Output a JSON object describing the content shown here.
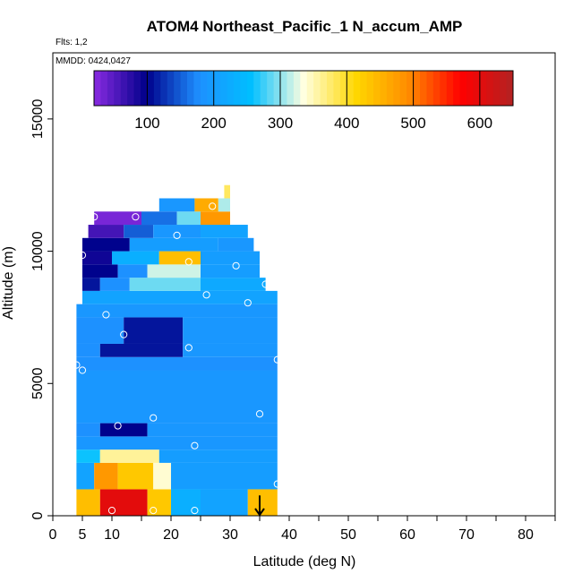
{
  "chart_data": {
    "type": "heatmap",
    "title": "ATOM4 Northeast_Pacific_1 N_accum_AMP",
    "annotations": [
      "Flts: 1,2",
      "MMDD: 0424,0427"
    ],
    "xlabel": "Latitude (deg N)",
    "ylabel": "Altitude (m)",
    "xlim": [
      0,
      85
    ],
    "ylim": [
      0,
      17500
    ],
    "x_ticks": [
      0,
      5,
      10,
      20,
      30,
      40,
      50,
      60,
      70,
      80
    ],
    "y_ticks": [
      0,
      5000,
      10000,
      15000
    ],
    "colorbar": {
      "range": [
        20,
        650
      ],
      "ticks": [
        100,
        200,
        300,
        400,
        500,
        600
      ],
      "colors": [
        "#8a2be2",
        "#00008b",
        "#1e90ff",
        "#00bfff",
        "#ffffe0",
        "#ffd700",
        "#ff8c00",
        "#ff0000",
        "#b22222"
      ]
    },
    "arrow": {
      "x": 35,
      "y_top": 700,
      "y_bottom": 0,
      "direction": "down"
    },
    "grid": false,
    "bands": [
      {
        "y0": 0,
        "y1": 1000,
        "segments": [
          [
            4,
            8,
            440
          ],
          [
            8,
            16,
            600
          ],
          [
            16,
            20,
            430
          ],
          [
            20,
            25,
            230
          ],
          [
            25,
            33,
            210
          ],
          [
            33,
            38,
            440
          ]
        ]
      },
      {
        "y0": 1000,
        "y1": 2000,
        "segments": [
          [
            4,
            7,
            210
          ],
          [
            7,
            11,
            480
          ],
          [
            11,
            17,
            430
          ],
          [
            17,
            20,
            340
          ],
          [
            20,
            38,
            200
          ]
        ]
      },
      {
        "y0": 2000,
        "y1": 2500,
        "segments": [
          [
            4,
            8,
            260
          ],
          [
            8,
            18,
            360
          ],
          [
            18,
            38,
            200
          ]
        ]
      },
      {
        "y0": 2500,
        "y1": 3000,
        "segments": [
          [
            4,
            38,
            190
          ]
        ]
      },
      {
        "y0": 3000,
        "y1": 3500,
        "segments": [
          [
            4,
            8,
            180
          ],
          [
            8,
            16,
            100
          ],
          [
            16,
            38,
            190
          ]
        ]
      },
      {
        "y0": 3500,
        "y1": 5500,
        "segments": [
          [
            4,
            38,
            190
          ]
        ]
      },
      {
        "y0": 5500,
        "y1": 6000,
        "segments": [
          [
            4,
            38,
            180
          ]
        ]
      },
      {
        "y0": 6000,
        "y1": 6500,
        "segments": [
          [
            4,
            8,
            180
          ],
          [
            8,
            22,
            110
          ],
          [
            22,
            38,
            190
          ]
        ]
      },
      {
        "y0": 6500,
        "y1": 7500,
        "segments": [
          [
            4,
            12,
            180
          ],
          [
            12,
            22,
            110
          ],
          [
            22,
            38,
            190
          ]
        ]
      },
      {
        "y0": 7500,
        "y1": 8000,
        "segments": [
          [
            4,
            38,
            190
          ]
        ]
      },
      {
        "y0": 8000,
        "y1": 8500,
        "segments": [
          [
            5,
            38,
            210
          ]
        ]
      },
      {
        "y0": 8500,
        "y1": 9000,
        "segments": [
          [
            5,
            8,
            110
          ],
          [
            8,
            13,
            180
          ],
          [
            13,
            25,
            290
          ],
          [
            25,
            36,
            220
          ]
        ]
      },
      {
        "y0": 9000,
        "y1": 9500,
        "segments": [
          [
            5,
            11,
            100
          ],
          [
            11,
            16,
            180
          ],
          [
            16,
            25,
            320
          ],
          [
            25,
            35,
            200
          ]
        ]
      },
      {
        "y0": 9500,
        "y1": 10000,
        "segments": [
          [
            5,
            10,
            90
          ],
          [
            10,
            18,
            230
          ],
          [
            18,
            25,
            440
          ],
          [
            25,
            35,
            200
          ]
        ]
      },
      {
        "y0": 10000,
        "y1": 10500,
        "segments": [
          [
            5,
            13,
            100
          ],
          [
            13,
            28,
            200
          ],
          [
            28,
            34,
            190
          ]
        ]
      },
      {
        "y0": 10500,
        "y1": 11000,
        "segments": [
          [
            6,
            12,
            60
          ],
          [
            12,
            17,
            150
          ],
          [
            17,
            25,
            190
          ],
          [
            25,
            33,
            210
          ]
        ]
      },
      {
        "y0": 11000,
        "y1": 11500,
        "segments": [
          [
            7,
            15,
            30
          ],
          [
            15,
            21,
            160
          ],
          [
            21,
            25,
            290
          ],
          [
            25,
            30,
            480
          ]
        ]
      },
      {
        "y0": 11500,
        "y1": 12000,
        "segments": [
          [
            18,
            24,
            190
          ],
          [
            24,
            28,
            460
          ],
          [
            28,
            30,
            310
          ]
        ]
      },
      {
        "y0": 12000,
        "y1": 12500,
        "segments": [
          [
            29,
            30,
            380
          ]
        ]
      }
    ],
    "points": [
      [
        7,
        11300
      ],
      [
        14,
        11300
      ],
      [
        27,
        11700
      ],
      [
        21,
        10600
      ],
      [
        5,
        9850
      ],
      [
        23,
        9600
      ],
      [
        31,
        9450
      ],
      [
        36,
        8750
      ],
      [
        26,
        8350
      ],
      [
        33,
        8050
      ],
      [
        9,
        7600
      ],
      [
        12,
        6850
      ],
      [
        23,
        6350
      ],
      [
        38,
        5900
      ],
      [
        4,
        5700
      ],
      [
        5,
        5500
      ],
      [
        35,
        3850
      ],
      [
        17,
        3700
      ],
      [
        11,
        3400
      ],
      [
        3,
        3200
      ],
      [
        24,
        2650
      ],
      [
        38,
        1200
      ],
      [
        10,
        200
      ],
      [
        17,
        200
      ],
      [
        24,
        200
      ]
    ]
  }
}
